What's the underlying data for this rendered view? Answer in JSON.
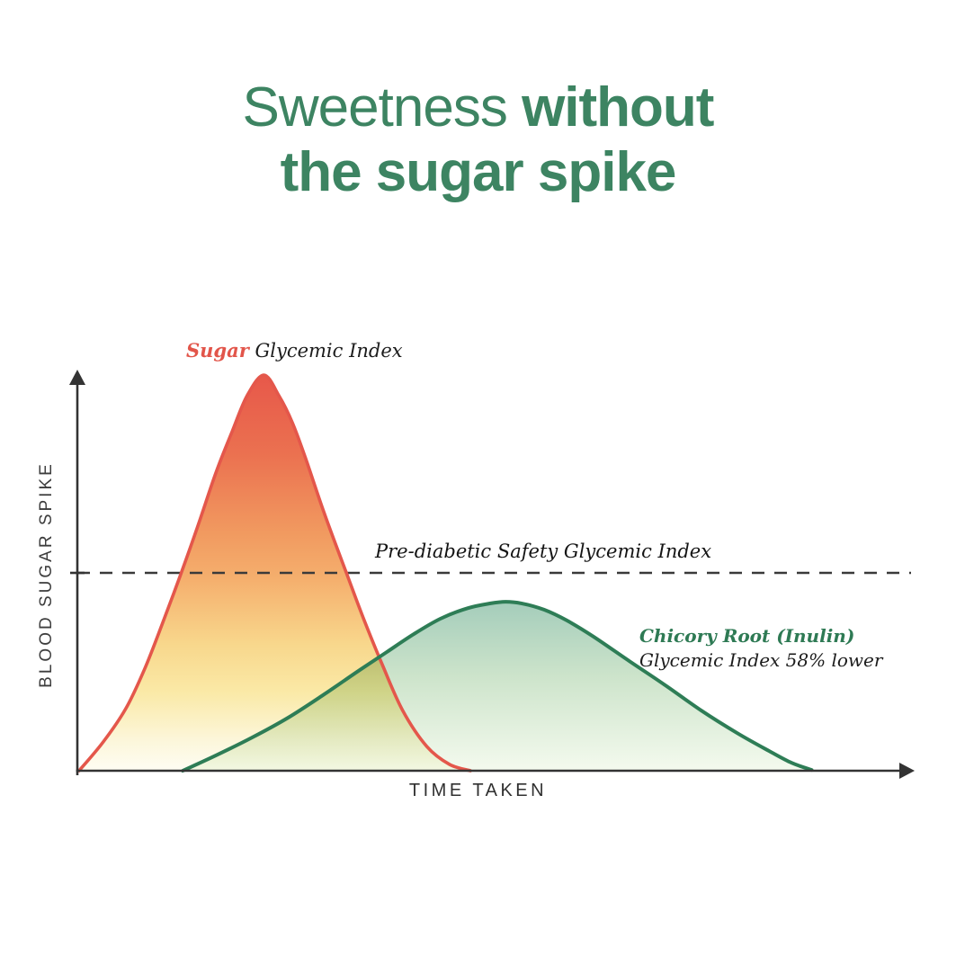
{
  "title": {
    "line1_light": "Sweetness ",
    "line1_bold": "without",
    "line2_bold": "the sugar spike",
    "color": "#3d8462"
  },
  "labels": {
    "sugar_name": "Sugar",
    "sugar_rest": " Glycemic Index",
    "threshold": "Pre-diabetic Safety Glycemic Index",
    "chicory_line1": "Chicory Root (Inulin)",
    "chicory_line2": "Glycemic Index 58% lower",
    "y_axis": "BLOOD SUGAR SPIKE",
    "x_axis": "TIME TAKEN"
  },
  "colors": {
    "title_green": "#3d8462",
    "sugar_red": "#e4574b",
    "sugar_label_red": "#e2554a",
    "chicory_green": "#2e7d56",
    "chicory_label_green": "#2e7a54",
    "axis_dark": "#333333",
    "dash_dark": "#3a3a3a"
  },
  "chart_data": {
    "type": "area",
    "title": "Sweetness without the sugar spike",
    "xlabel": "TIME TAKEN",
    "ylabel": "BLOOD SUGAR SPIKE",
    "x_range": [
      0,
      100
    ],
    "y_range": [
      0,
      100
    ],
    "grid": false,
    "legend_position": "inline-annotations",
    "threshold": {
      "label": "Pre-diabetic Safety Glycemic Index",
      "y": 50
    },
    "series": [
      {
        "id": "sugar",
        "name": "Sugar Glycemic Index",
        "color": "#e4574b",
        "peak": {
          "x": 22.3,
          "y": 100
        },
        "points": [
          [
            0.2,
            0
          ],
          [
            3.1,
            7.3
          ],
          [
            5.8,
            15.7
          ],
          [
            8.0,
            25.5
          ],
          [
            10.1,
            36.8
          ],
          [
            12.3,
            49.3
          ],
          [
            14.4,
            61.8
          ],
          [
            16.6,
            75.5
          ],
          [
            18.5,
            85.7
          ],
          [
            20.3,
            94.8
          ],
          [
            22.3,
            100
          ],
          [
            24.1,
            94.8
          ],
          [
            25.7,
            88.0
          ],
          [
            27.3,
            78.9
          ],
          [
            29.5,
            65.2
          ],
          [
            32.2,
            49.8
          ],
          [
            34.3,
            38.0
          ],
          [
            36.5,
            26.6
          ],
          [
            38.9,
            15.2
          ],
          [
            41.8,
            6.1
          ],
          [
            44.5,
            1.6
          ],
          [
            47.0,
            0
          ]
        ]
      },
      {
        "id": "chicory",
        "name": "Chicory Root (Inulin) Glycemic Index 58% lower",
        "color": "#2e7d56",
        "peak": {
          "x": 51.2,
          "y": 42.7
        },
        "points": [
          [
            12.6,
            0
          ],
          [
            16.6,
            3.9
          ],
          [
            20.9,
            8.4
          ],
          [
            25.2,
            13.4
          ],
          [
            29.5,
            19.3
          ],
          [
            33.8,
            25.5
          ],
          [
            37.0,
            30.0
          ],
          [
            40.2,
            34.5
          ],
          [
            43.4,
            38.4
          ],
          [
            46.7,
            41.1
          ],
          [
            49.4,
            42.3
          ],
          [
            51.2,
            42.7
          ],
          [
            53.1,
            42.3
          ],
          [
            55.8,
            40.7
          ],
          [
            58.5,
            38.0
          ],
          [
            61.7,
            33.9
          ],
          [
            66.0,
            27.7
          ],
          [
            70.3,
            21.6
          ],
          [
            74.6,
            15.2
          ],
          [
            78.9,
            9.5
          ],
          [
            82.7,
            5.0
          ],
          [
            85.4,
            2.0
          ],
          [
            87.8,
            0.2
          ]
        ]
      }
    ]
  }
}
